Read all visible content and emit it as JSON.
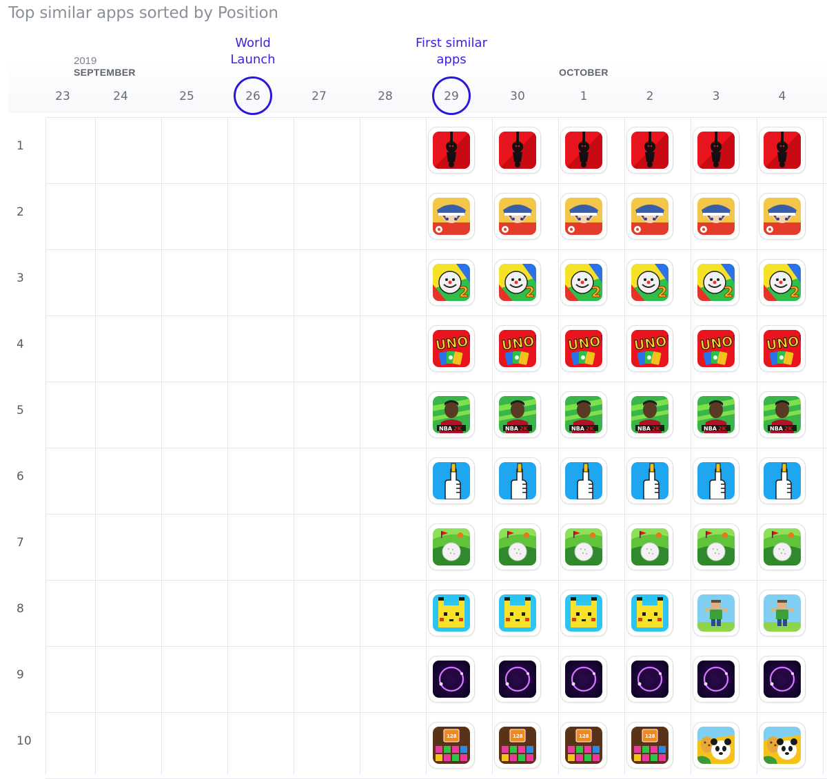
{
  "title": "Top similar apps sorted by Position",
  "timeline": {
    "year": "2019",
    "months": [
      {
        "label": "SEPTEMBER",
        "column": 1
      },
      {
        "label": "OCTOBER",
        "column": 8
      }
    ],
    "days": [
      "23",
      "24",
      "25",
      "26",
      "27",
      "28",
      "29",
      "30",
      "1",
      "2",
      "3",
      "4"
    ],
    "annotations": [
      {
        "text_line1": "World",
        "text_line2": "Launch",
        "column": 3
      },
      {
        "text_line1": "First similar",
        "text_line2": "apps",
        "column": 6
      }
    ],
    "highlight_color": "#2a18d8"
  },
  "positions": [
    "1",
    "2",
    "3",
    "4",
    "5",
    "6",
    "7",
    "8",
    "9",
    "10"
  ],
  "first_data_column": 6,
  "rows": [
    [
      "hanging-stickman-icon",
      "hanging-stickman-icon",
      "hanging-stickman-icon",
      "hanging-stickman-icon",
      "hanging-stickman-icon",
      "hanging-stickman-icon"
    ],
    [
      "anime-trainer-icon",
      "anime-trainer-icon",
      "anime-trainer-icon",
      "anime-trainer-icon",
      "anime-trainer-icon",
      "anime-trainer-icon"
    ],
    [
      "clown-face-2-icon",
      "clown-face-2-icon",
      "clown-face-2-icon",
      "clown-face-2-icon",
      "clown-face-2-icon",
      "clown-face-2-icon"
    ],
    [
      "uno-cards-icon",
      "uno-cards-icon",
      "uno-cards-icon",
      "uno-cards-icon",
      "uno-cards-icon",
      "uno-cards-icon"
    ],
    [
      "nba-player-icon",
      "nba-player-icon",
      "nba-player-icon",
      "nba-player-icon",
      "nba-player-icon",
      "nba-player-icon"
    ],
    [
      "thumb-up-icon",
      "thumb-up-icon",
      "thumb-up-icon",
      "thumb-up-icon",
      "thumb-up-icon",
      "thumb-up-icon"
    ],
    [
      "golf-ball-icon",
      "golf-ball-icon",
      "golf-ball-icon",
      "golf-ball-icon",
      "golf-ball-icon",
      "golf-ball-icon"
    ],
    [
      "pixel-pikachu-icon",
      "pixel-pikachu-icon",
      "pixel-pikachu-icon",
      "pixel-pikachu-icon",
      "blocky-runner-icon",
      "blocky-runner-icon"
    ],
    [
      "purple-ring-icon",
      "purple-ring-icon",
      "purple-ring-icon",
      "purple-ring-icon",
      "purple-ring-icon",
      "purple-ring-icon"
    ],
    [
      "block-puzzle-icon",
      "block-puzzle-icon",
      "block-puzzle-icon",
      "block-puzzle-icon",
      "animal-safari-icon",
      "animal-safari-icon"
    ]
  ],
  "colors": {
    "grid_line": "#e3e6ea",
    "annotation_text": "#3a22e0"
  }
}
